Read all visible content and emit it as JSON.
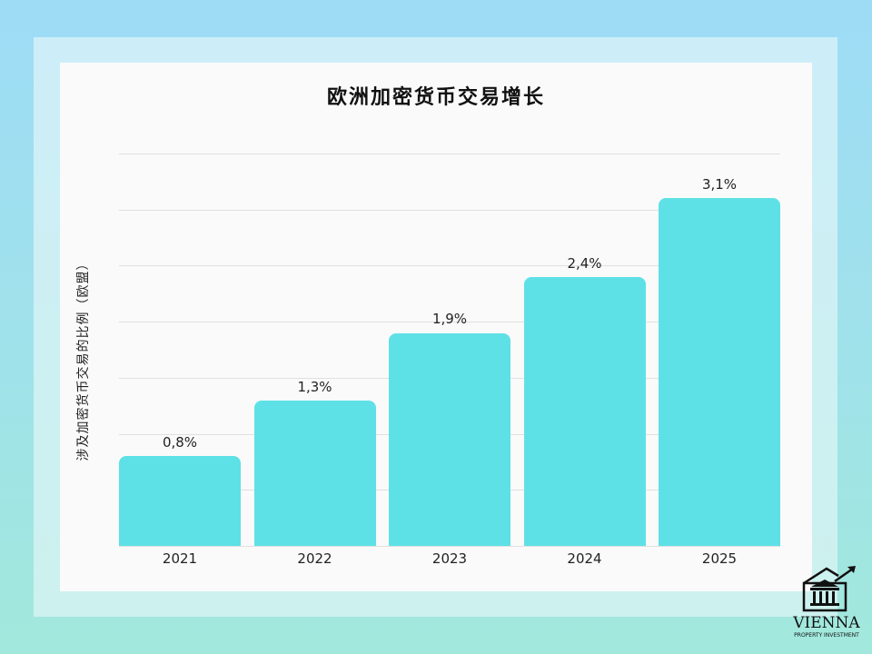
{
  "chart_data": {
    "type": "bar",
    "title": "欧洲加密货币交易增长",
    "xlabel": "",
    "ylabel": "涉及加密货币交易的比例（欧盟）",
    "categories": [
      "2021",
      "2022",
      "2023",
      "2024",
      "2025"
    ],
    "values": [
      0.8,
      1.3,
      1.9,
      2.4,
      3.1
    ],
    "value_labels": [
      "0,8%",
      "1,3%",
      "1,9%",
      "2,4%",
      "3,1%"
    ],
    "ylim": [
      0,
      3.5
    ],
    "grid": true,
    "gridline_step": 0.5,
    "y_tick_labels_shown": false,
    "legend": null,
    "bar_color": "#5ee1e6"
  },
  "logo": {
    "name": "VIENNA",
    "subtitle": "PROPERTY INVESTMENT",
    "icon": "building-with-arrow-icon"
  },
  "colors": {
    "background_top": "#9edcf6",
    "background_bottom": "#a2e8dc",
    "panel": "#fafafa",
    "bar": "#5ee1e6",
    "grid": "#e0e0e0"
  }
}
